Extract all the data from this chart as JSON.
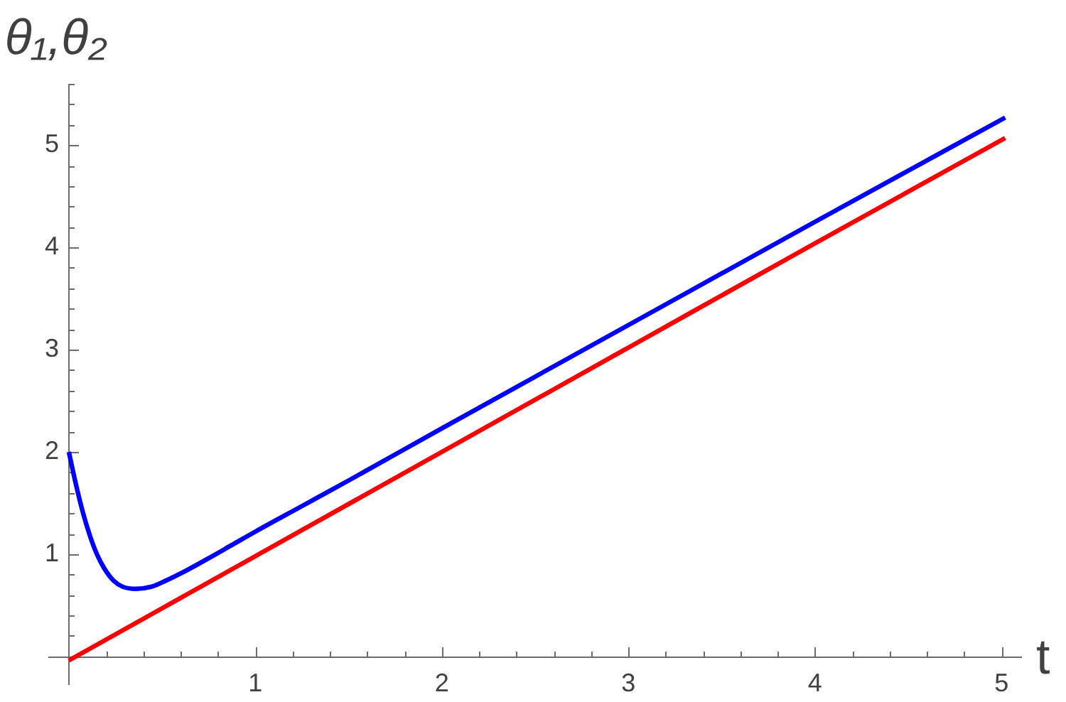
{
  "chart_data": {
    "type": "line",
    "xlabel": "t",
    "ylabel": "θ₁,θ₂",
    "xlim": [
      -0.11,
      5.11
    ],
    "ylim": [
      -0.28,
      5.6
    ],
    "xticks": [
      {
        "value": 0.2,
        "label": null
      },
      {
        "value": 0.4,
        "label": null
      },
      {
        "value": 0.6,
        "label": null
      },
      {
        "value": 0.8,
        "label": null
      },
      1,
      {
        "value": 1.2,
        "label": null
      },
      {
        "value": 1.4,
        "label": null
      },
      {
        "value": 1.6,
        "label": null
      },
      {
        "value": 1.8,
        "label": null
      },
      2,
      {
        "value": 2.2,
        "label": null
      },
      {
        "value": 2.4,
        "label": null
      },
      {
        "value": 2.6,
        "label": null
      },
      {
        "value": 2.8,
        "label": null
      },
      3,
      {
        "value": 3.2,
        "label": null
      },
      {
        "value": 3.4,
        "label": null
      },
      {
        "value": 3.6,
        "label": null
      },
      {
        "value": 3.8,
        "label": null
      },
      4,
      {
        "value": 4.2,
        "label": null
      },
      {
        "value": 4.4,
        "label": null
      },
      {
        "value": 4.6,
        "label": null
      },
      {
        "value": 4.8,
        "label": null
      },
      5
    ],
    "yticks": [
      {
        "value": 0.2,
        "label": null
      },
      {
        "value": 0.4,
        "label": null
      },
      {
        "value": 0.6,
        "label": null
      },
      {
        "value": 0.8,
        "label": null
      },
      1,
      {
        "value": 1.2,
        "label": null
      },
      {
        "value": 1.4,
        "label": null
      },
      {
        "value": 1.6,
        "label": null
      },
      {
        "value": 1.8,
        "label": null
      },
      2,
      {
        "value": 2.2,
        "label": null
      },
      {
        "value": 2.4,
        "label": null
      },
      {
        "value": 2.6,
        "label": null
      },
      {
        "value": 2.8,
        "label": null
      },
      3,
      {
        "value": 3.2,
        "label": null
      },
      {
        "value": 3.4,
        "label": null
      },
      {
        "value": 3.6,
        "label": null
      },
      {
        "value": 3.8,
        "label": null
      },
      4,
      {
        "value": 4.2,
        "label": null
      },
      {
        "value": 4.4,
        "label": null
      },
      {
        "value": 4.6,
        "label": null
      },
      {
        "value": 4.8,
        "label": null
      },
      5,
      {
        "value": 5.2,
        "label": null
      },
      {
        "value": 5.4,
        "label": null
      },
      {
        "value": 5.6,
        "label": null
      }
    ],
    "series": [
      {
        "color": "#0000ff",
        "x": [
          0,
          0.037,
          0.075,
          0.113,
          0.15,
          0.19,
          0.24,
          0.29,
          0.36,
          0.44,
          0.52,
          0.62,
          0.75,
          0.875,
          1.0,
          1.25,
          1.5,
          2,
          3,
          4,
          5.02
        ],
        "values": [
          2.0,
          1.69,
          1.41,
          1.18,
          1.0,
          0.86,
          0.74,
          0.68,
          0.66,
          0.68,
          0.74,
          0.83,
          0.96,
          1.09,
          1.22,
          1.47,
          1.72,
          2.23,
          3.24,
          4.25,
          5.27
        ]
      },
      {
        "color": "#ff0000",
        "x": [
          0,
          1,
          2,
          3,
          4,
          5.02
        ],
        "values": [
          -0.04,
          0.98,
          2.0,
          3.02,
          4.04,
          5.07
        ]
      }
    ]
  }
}
